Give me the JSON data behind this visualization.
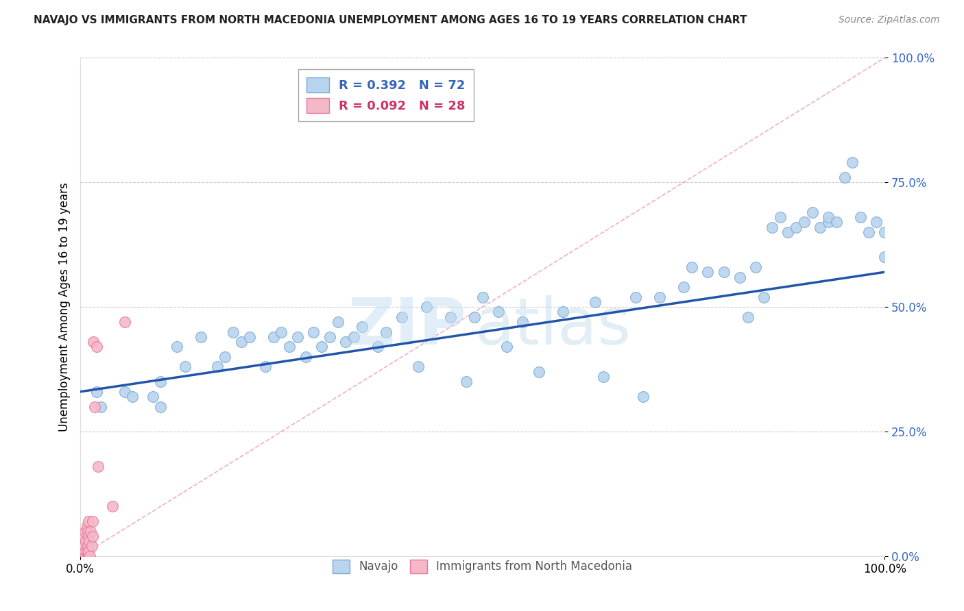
{
  "title": "NAVAJO VS IMMIGRANTS FROM NORTH MACEDONIA UNEMPLOYMENT AMONG AGES 16 TO 19 YEARS CORRELATION CHART",
  "source": "Source: ZipAtlas.com",
  "ylabel": "Unemployment Among Ages 16 to 19 years",
  "xlim": [
    0.0,
    1.0
  ],
  "ylim": [
    0.0,
    1.0
  ],
  "ytick_labels": [
    "0.0%",
    "25.0%",
    "50.0%",
    "75.0%",
    "100.0%"
  ],
  "ytick_positions": [
    0.0,
    0.25,
    0.5,
    0.75,
    1.0
  ],
  "legend_R1": "R = 0.392",
  "legend_N1": "N = 72",
  "legend_R2": "R = 0.092",
  "legend_N2": "N = 28",
  "navajo_color": "#b8d4ee",
  "navajo_edge_color": "#7aaad4",
  "pink_color": "#f5b8c8",
  "pink_edge_color": "#e87898",
  "trendline1_color": "#2255aa",
  "trendline2_color": "#e87898",
  "grid_color": "#cccccc",
  "navajo_x": [
    0.02,
    0.025,
    0.055,
    0.065,
    0.09,
    0.1,
    0.1,
    0.12,
    0.13,
    0.15,
    0.17,
    0.18,
    0.19,
    0.2,
    0.21,
    0.23,
    0.24,
    0.25,
    0.26,
    0.27,
    0.28,
    0.29,
    0.3,
    0.31,
    0.32,
    0.33,
    0.34,
    0.35,
    0.37,
    0.38,
    0.4,
    0.43,
    0.46,
    0.49,
    0.52,
    0.55,
    0.6,
    0.64,
    0.69,
    0.72,
    0.75,
    0.78,
    0.8,
    0.82,
    0.84,
    0.86,
    0.87,
    0.88,
    0.89,
    0.9,
    0.91,
    0.92,
    0.93,
    0.93,
    0.94,
    0.95,
    0.96,
    0.97,
    0.98,
    0.99,
    1.0,
    1.0,
    0.42,
    0.48,
    0.5,
    0.53,
    0.57,
    0.65,
    0.7,
    0.76,
    0.83,
    0.85
  ],
  "navajo_y": [
    0.33,
    0.3,
    0.33,
    0.32,
    0.32,
    0.35,
    0.3,
    0.42,
    0.38,
    0.44,
    0.38,
    0.4,
    0.45,
    0.43,
    0.44,
    0.38,
    0.44,
    0.45,
    0.42,
    0.44,
    0.4,
    0.45,
    0.42,
    0.44,
    0.47,
    0.43,
    0.44,
    0.46,
    0.42,
    0.45,
    0.48,
    0.5,
    0.48,
    0.48,
    0.49,
    0.47,
    0.49,
    0.51,
    0.52,
    0.52,
    0.54,
    0.57,
    0.57,
    0.56,
    0.58,
    0.66,
    0.68,
    0.65,
    0.66,
    0.67,
    0.69,
    0.66,
    0.67,
    0.68,
    0.67,
    0.76,
    0.79,
    0.68,
    0.65,
    0.67,
    0.6,
    0.65,
    0.38,
    0.35,
    0.52,
    0.42,
    0.37,
    0.36,
    0.32,
    0.58,
    0.48,
    0.52
  ],
  "pink_x": [
    0.005,
    0.005,
    0.005,
    0.006,
    0.006,
    0.007,
    0.007,
    0.008,
    0.008,
    0.009,
    0.009,
    0.009,
    0.01,
    0.01,
    0.01,
    0.01,
    0.011,
    0.012,
    0.013,
    0.014,
    0.015,
    0.015,
    0.016,
    0.018,
    0.02,
    0.022,
    0.04,
    0.055
  ],
  "pink_y": [
    0.0,
    0.02,
    0.04,
    0.01,
    0.05,
    0.0,
    0.03,
    0.01,
    0.06,
    0.0,
    0.02,
    0.05,
    0.0,
    0.01,
    0.04,
    0.07,
    0.03,
    0.0,
    0.05,
    0.02,
    0.04,
    0.07,
    0.43,
    0.3,
    0.42,
    0.18,
    0.1,
    0.47
  ],
  "trendline1_y_start": 0.33,
  "trendline1_y_end": 0.57,
  "trendline2_x_start": 0.0,
  "trendline2_x_end": 1.0,
  "trendline2_y_start": 0.0,
  "trendline2_y_end": 1.0,
  "background_color": "#ffffff"
}
